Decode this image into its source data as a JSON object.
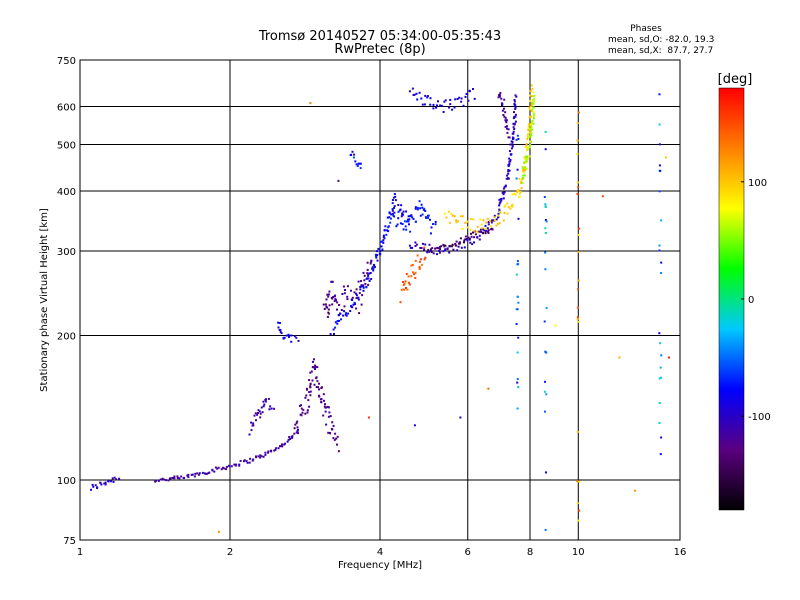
{
  "chart_data": {
    "type": "scatter",
    "title": "Tromsø 20140527 05:34:00-05:35:43",
    "subtitle": "RwPretec (8p)",
    "phase_info": {
      "heading": "Phases",
      "line_o": "mean, sd,O: -82.0, 19.3",
      "line_x": "mean, sd,X:  87.7, 27.7"
    },
    "xlabel": "Frequency [MHz]",
    "ylabel": "Stationary phase Virtual Height [km]",
    "x_scale": "log",
    "y_scale": "log",
    "xlim": [
      1,
      16
    ],
    "ylim": [
      75,
      750
    ],
    "x_ticks": [
      1,
      2,
      4,
      6,
      8,
      10,
      16
    ],
    "x_tick_labels": [
      "1",
      "2",
      "4",
      "6",
      "8",
      "10",
      "16"
    ],
    "y_ticks": [
      75,
      100,
      200,
      300,
      400,
      500,
      600,
      750
    ],
    "y_tick_labels": [
      "75",
      "100",
      "200",
      "300",
      "400",
      "500",
      "600",
      "750"
    ],
    "grid": true,
    "colorbar": {
      "label": "[deg]",
      "range": [
        -180,
        180
      ],
      "ticks": [
        100,
        0,
        -100
      ],
      "tick_labels": [
        "100",
        "0",
        "-100"
      ],
      "colors": [
        "#000000",
        "#5a0080",
        "#0000ff",
        "#00c8ff",
        "#00ff00",
        "#ffff00",
        "#ff7f00",
        "#ff0000"
      ]
    },
    "traces": [
      {
        "name": "",
        "phase": -100,
        "jitter_h": 0.015,
        "points": [
          [
            1.05,
            96
          ],
          [
            1.1,
            98
          ],
          [
            1.15,
            100
          ],
          [
            1.2,
            101
          ]
        ]
      },
      {
        "name": "",
        "phase": -115,
        "jitter_h": 0.01,
        "points": [
          [
            1.42,
            100
          ],
          [
            1.6,
            101
          ],
          [
            1.8,
            104
          ],
          [
            2.0,
            107
          ],
          [
            2.2,
            110
          ],
          [
            2.4,
            114
          ],
          [
            2.6,
            120
          ],
          [
            2.75,
            128
          ]
        ]
      },
      {
        "name": "",
        "phase": -110,
        "jitter_h": 0.03,
        "points": [
          [
            2.2,
            128
          ],
          [
            2.3,
            140
          ],
          [
            2.35,
            147
          ],
          [
            2.45,
            140
          ]
        ]
      },
      {
        "name": "",
        "phase": -85,
        "jitter_h": 0.02,
        "points": [
          [
            2.5,
            210
          ],
          [
            2.55,
            200
          ],
          [
            2.65,
            196
          ],
          [
            2.75,
            198
          ]
        ]
      },
      {
        "name": "",
        "phase": -125,
        "jitter_h": 0.06,
        "points": [
          [
            2.7,
            130
          ],
          [
            2.85,
            145
          ],
          [
            2.95,
            170
          ],
          [
            3.05,
            150
          ],
          [
            3.15,
            135
          ],
          [
            3.3,
            120
          ]
        ]
      },
      {
        "name": "",
        "phase": -125,
        "jitter_h": 0.07,
        "points": [
          [
            3.1,
            220
          ],
          [
            3.2,
            250
          ],
          [
            3.3,
            230
          ],
          [
            3.45,
            245
          ],
          [
            3.6,
            235
          ],
          [
            3.75,
            265
          ],
          [
            3.9,
            285
          ]
        ]
      },
      {
        "name": "",
        "phase": -80,
        "jitter_h": 0.03,
        "points": [
          [
            3.2,
            205
          ],
          [
            3.5,
            230
          ],
          [
            3.8,
            262
          ],
          [
            4.0,
            300
          ],
          [
            4.15,
            345
          ],
          [
            4.3,
            385
          ],
          [
            4.45,
            360
          ],
          [
            4.6,
            335
          ]
        ]
      },
      {
        "name": "",
        "phase": -75,
        "jitter_h": 0.04,
        "points": [
          [
            4.2,
            350
          ],
          [
            4.4,
            345
          ],
          [
            4.6,
            340
          ],
          [
            4.8,
            372
          ],
          [
            5.0,
            345
          ],
          [
            5.2,
            330
          ]
        ]
      },
      {
        "name": "",
        "phase": 145,
        "jitter_h": 0.05,
        "points": [
          [
            4.4,
            245
          ],
          [
            4.55,
            260
          ],
          [
            4.7,
            275
          ],
          [
            4.85,
            290
          ],
          [
            4.95,
            300
          ]
        ]
      },
      {
        "name": "",
        "phase": -100,
        "jitter_h": 0.02,
        "points": [
          [
            4.6,
            310
          ],
          [
            4.9,
            305
          ],
          [
            5.3,
            300
          ],
          [
            5.7,
            305
          ],
          [
            6.1,
            315
          ],
          [
            6.5,
            330
          ],
          [
            6.9,
            360
          ],
          [
            7.2,
            420
          ],
          [
            7.35,
            500
          ],
          [
            7.45,
            560
          ],
          [
            7.5,
            635
          ]
        ]
      },
      {
        "name": "",
        "phase": -140,
        "jitter_h": 0.015,
        "points": [
          [
            5.0,
            300
          ],
          [
            5.5,
            308
          ],
          [
            6.0,
            320
          ],
          [
            6.5,
            330
          ],
          [
            6.8,
            336
          ]
        ]
      },
      {
        "name": "",
        "phase": 95,
        "jitter_h": 0.03,
        "points": [
          [
            5.4,
            355
          ],
          [
            5.8,
            345
          ],
          [
            6.3,
            338
          ],
          [
            6.8,
            345
          ],
          [
            7.2,
            365
          ],
          [
            7.6,
            400
          ],
          [
            7.9,
            480
          ],
          [
            8.0,
            560
          ],
          [
            8.05,
            650
          ]
        ]
      },
      {
        "name": "",
        "phase": 60,
        "jitter_h": 0.025,
        "points": [
          [
            7.7,
            420
          ],
          [
            7.95,
            480
          ],
          [
            8.1,
            560
          ],
          [
            8.15,
            640
          ]
        ]
      },
      {
        "name": "",
        "phase": -90,
        "jitter_h": 0.03,
        "points": [
          [
            4.6,
            640
          ],
          [
            5.0,
            615
          ],
          [
            5.4,
            600
          ],
          [
            5.8,
            610
          ],
          [
            6.2,
            640
          ]
        ]
      },
      {
        "name": "",
        "phase": -120,
        "jitter_h": 0.02,
        "points": [
          [
            6.9,
            640
          ],
          [
            7.05,
            600
          ],
          [
            7.15,
            560
          ],
          [
            7.25,
            520
          ]
        ]
      },
      {
        "name": "",
        "phase": -70,
        "jitter_h": 0.02,
        "points": [
          [
            3.5,
            480
          ],
          [
            3.6,
            460
          ],
          [
            3.7,
            450
          ]
        ]
      }
    ],
    "vertical_streaks": [
      {
        "x": 7.55,
        "y_range": [
          120,
          640
        ],
        "phase": -60
      },
      {
        "x": 8.6,
        "y_range": [
          76,
          560
        ],
        "phase": -40
      },
      {
        "x": 10.0,
        "y_range": [
          82,
          650
        ],
        "phase": 120
      },
      {
        "x": 14.6,
        "y_range": [
          110,
          640
        ],
        "phase": -50
      }
    ],
    "scattered_points": [
      {
        "x": 2.9,
        "y": 610,
        "phase": 130
      },
      {
        "x": 3.3,
        "y": 420,
        "phase": -110
      },
      {
        "x": 1.9,
        "y": 78,
        "phase": 120
      },
      {
        "x": 3.8,
        "y": 135,
        "phase": 160
      },
      {
        "x": 4.7,
        "y": 130,
        "phase": -90
      },
      {
        "x": 5.8,
        "y": 135,
        "phase": -100
      },
      {
        "x": 6.6,
        "y": 155,
        "phase": 140
      },
      {
        "x": 7.1,
        "y": 620,
        "phase": -120
      },
      {
        "x": 9.0,
        "y": 210,
        "phase": 80
      },
      {
        "x": 11.2,
        "y": 390,
        "phase": 150
      },
      {
        "x": 12.1,
        "y": 180,
        "phase": 110
      },
      {
        "x": 13.0,
        "y": 95,
        "phase": 120
      },
      {
        "x": 15.0,
        "y": 470,
        "phase": 100
      },
      {
        "x": 15.2,
        "y": 180,
        "phase": 170
      }
    ]
  }
}
